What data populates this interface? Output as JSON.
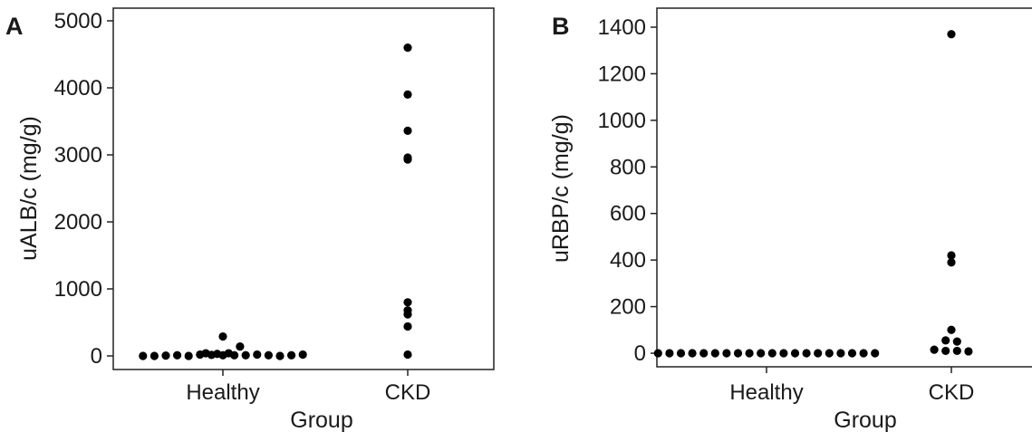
{
  "chart_data": [
    {
      "panel_label": "A",
      "type": "scatter",
      "xlabel": "Group",
      "ylabel": "uALB/c (mg/g)",
      "categories": [
        "Healthy",
        "CKD"
      ],
      "ylim": [
        0,
        5000
      ],
      "yticks": [
        "0",
        "1000",
        "2000",
        "3000",
        "4000",
        "5000"
      ],
      "grid": false,
      "series": [
        {
          "category": "Healthy",
          "values": [
            0,
            0,
            5,
            40,
            10,
            0,
            20,
            15,
            10,
            10,
            10,
            20,
            30,
            10,
            0,
            10,
            40,
            20,
            140,
            290
          ]
        },
        {
          "category": "CKD",
          "values": [
            4600,
            3900,
            3360,
            2960,
            2930,
            800,
            680,
            620,
            440,
            20
          ]
        }
      ]
    },
    {
      "panel_label": "B",
      "type": "scatter",
      "xlabel": "Group",
      "ylabel": "uRBP/c (mg/g)",
      "categories": [
        "Healthy",
        "CKD"
      ],
      "ylim": [
        0,
        1400
      ],
      "yticks": [
        "0",
        "200",
        "400",
        "600",
        "800",
        "1000",
        "1200",
        "1400"
      ],
      "grid": false,
      "series": [
        {
          "category": "Healthy",
          "values": [
            0,
            0,
            0,
            0,
            0,
            0,
            0,
            0,
            0,
            0,
            0,
            0,
            0,
            0,
            0,
            0,
            0,
            0,
            0,
            0
          ]
        },
        {
          "category": "CKD",
          "values": [
            1370,
            420,
            390,
            100,
            55,
            50,
            15,
            10,
            10,
            8
          ]
        }
      ]
    }
  ]
}
